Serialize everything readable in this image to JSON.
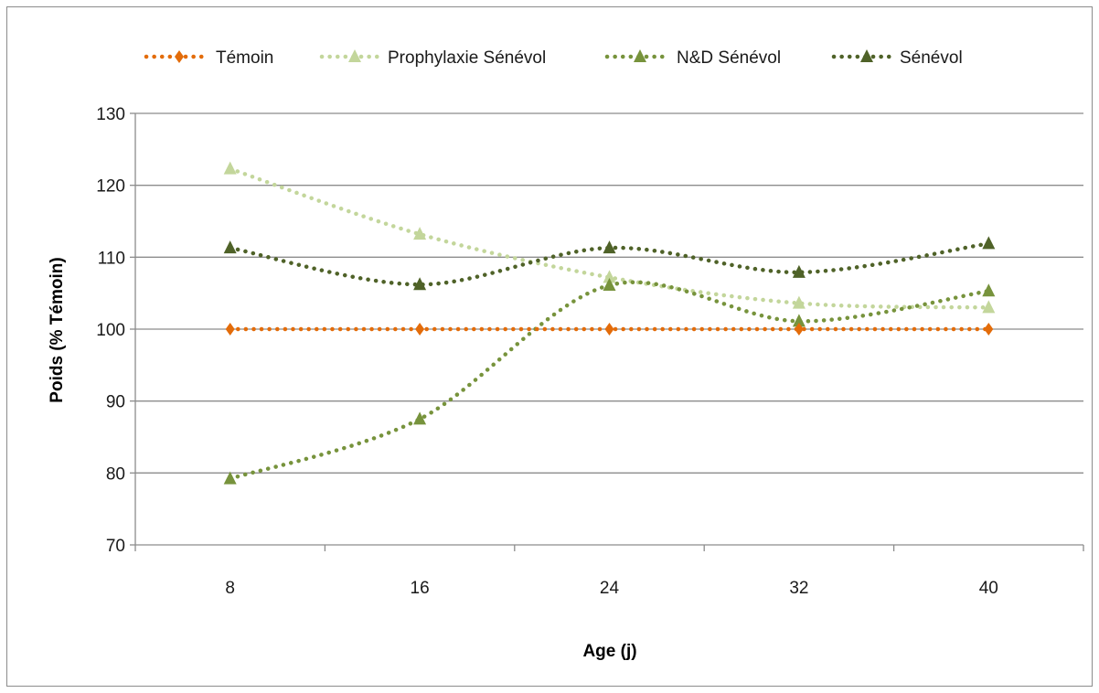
{
  "chart_data": {
    "type": "line",
    "title": "",
    "xlabel": "Age (j)",
    "ylabel": "Poids (% Témoin)",
    "categories": [
      "8",
      "16",
      "24",
      "32",
      "40"
    ],
    "ylim": [
      70,
      130
    ],
    "yticks": [
      "70",
      "80",
      "90",
      "100",
      "110",
      "120",
      "130"
    ],
    "grid": "horizontal",
    "legend_position": "top",
    "series": [
      {
        "name": "Témoin",
        "values": [
          100,
          100,
          100,
          100,
          100
        ],
        "color": "#e36c0a",
        "marker": "diamond"
      },
      {
        "name": "Prophylaxie Sénévol",
        "values": [
          122.3,
          113.2,
          107.2,
          103.6,
          103.0
        ],
        "color": "#c3d69b",
        "marker": "triangle"
      },
      {
        "name": "N&D Sénévol",
        "values": [
          79.2,
          87.5,
          106.1,
          101.1,
          105.3
        ],
        "color": "#77933c",
        "marker": "triangle"
      },
      {
        "name": "Sénévol",
        "values": [
          111.3,
          106.2,
          111.3,
          107.9,
          111.9
        ],
        "color": "#4f6228",
        "marker": "triangle"
      }
    ]
  }
}
